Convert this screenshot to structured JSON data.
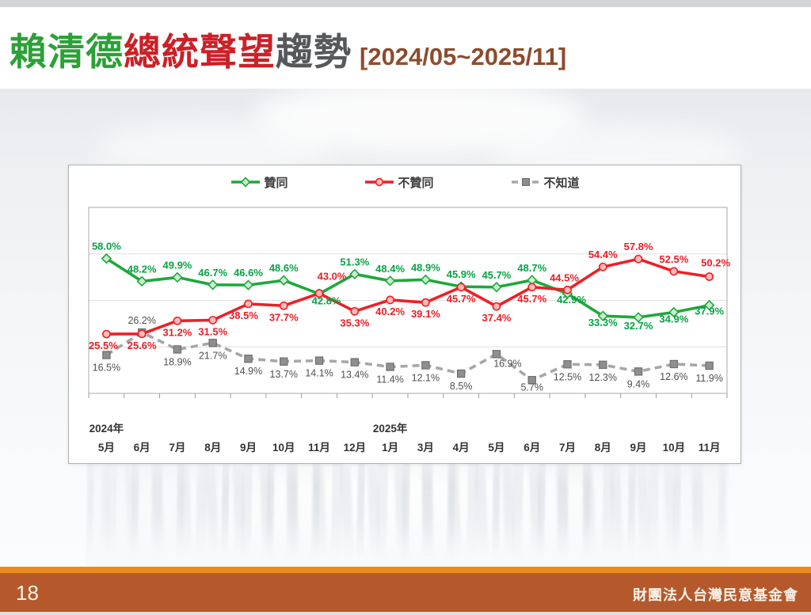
{
  "slide": {
    "title": {
      "part_green": "賴清德",
      "part_red": "總統聲望",
      "part_dark": "趨勢",
      "bracket": "[2024/05~2025/11]"
    },
    "footer": {
      "page_number": "18",
      "org": "財團法人台灣民意基金會"
    },
    "colors": {
      "title_green": "#2ba138",
      "title_red": "#cb2127",
      "title_dark": "#57585a",
      "title_brown": "#8d4b2c",
      "footer_stripe": "#e98a1d",
      "footer_body": "#b5592c"
    }
  },
  "chart_data": {
    "type": "line",
    "title": "賴清德總統聲望趨勢 2024/05~2025/11",
    "legend_position": "top",
    "grid": true,
    "gridlines_pct": [
      20,
      40,
      60,
      80
    ],
    "ylim": [
      0,
      80
    ],
    "categories": [
      "5月",
      "6月",
      "7月",
      "8月",
      "9月",
      "10月",
      "11月",
      "12月",
      "1月",
      "3月",
      "4月",
      "5月",
      "6月",
      "7月",
      "8月",
      "9月",
      "10月",
      "11月"
    ],
    "year_labels": [
      {
        "label": "2024年",
        "index": 0
      },
      {
        "label": "2025年",
        "index": 8
      }
    ],
    "series": [
      {
        "name": "贊同",
        "marker": "diamond",
        "dashed": false,
        "line_color": "#1da83c",
        "marker_fill": "#c9efcb",
        "marker_stroke": "#1da83c",
        "label_color": "#07a344",
        "values": [
          58.0,
          48.2,
          49.9,
          46.7,
          46.6,
          48.6,
          42.8,
          51.3,
          48.4,
          48.9,
          45.9,
          45.7,
          48.7,
          42.9,
          33.3,
          32.7,
          34.9,
          37.9
        ],
        "label_positions": [
          "above",
          "above",
          "above",
          "above",
          "above",
          "above",
          "below",
          "above",
          "above",
          "above",
          "above",
          "above",
          "above",
          "below",
          "below",
          "below",
          "below",
          "below"
        ],
        "label_nudges": {
          "6": [
            9,
            -6
          ],
          "13": [
            5,
            -7
          ],
          "14": [
            0,
            -6
          ],
          "15": [
            0,
            -4
          ],
          "16": [
            0,
            -6
          ],
          "17": [
            0,
            -7
          ]
        }
      },
      {
        "name": "不贊同",
        "marker": "circle",
        "dashed": false,
        "line_color": "#f01e26",
        "marker_fill": "#f7bcb9",
        "marker_stroke": "#f01e26",
        "label_color": "#ee1c25",
        "values": [
          25.5,
          25.6,
          31.2,
          31.5,
          38.5,
          37.7,
          43.0,
          35.3,
          40.2,
          39.1,
          45.7,
          37.4,
          45.7,
          44.5,
          54.4,
          57.8,
          52.5,
          50.2
        ],
        "label_positions": [
          "below",
          "below",
          "below",
          "below",
          "below",
          "below",
          "above",
          "below",
          "below",
          "below",
          "below",
          "below",
          "below",
          "above",
          "above",
          "above",
          "above",
          "above"
        ],
        "label_nudges": {
          "0": [
            -4,
            0
          ],
          "4": [
            -6,
            0
          ],
          "6": [
            16,
            -6
          ],
          "13": [
            -4,
            0
          ],
          "17": [
            8,
            -2
          ]
        }
      },
      {
        "name": "不知道",
        "marker": "square",
        "dashed": true,
        "line_color": "#a7a7a7",
        "marker_fill": "#8f8f8f",
        "marker_stroke": "#6f6f6f",
        "label_color": "#4f4f4f",
        "values": [
          16.5,
          26.2,
          18.9,
          21.7,
          14.9,
          13.7,
          14.1,
          13.4,
          11.4,
          12.1,
          8.5,
          16.9,
          5.7,
          12.5,
          12.3,
          9.4,
          12.6,
          11.9
        ],
        "label_positions": [
          "below",
          "above",
          "below",
          "below",
          "below",
          "below",
          "below",
          "below",
          "below",
          "below",
          "below",
          "below",
          "below",
          "below",
          "below",
          "below",
          "below",
          "below"
        ],
        "label_nudges": {
          "11": [
            14,
            -4
          ],
          "12": [
            0,
            -7
          ]
        }
      }
    ]
  }
}
